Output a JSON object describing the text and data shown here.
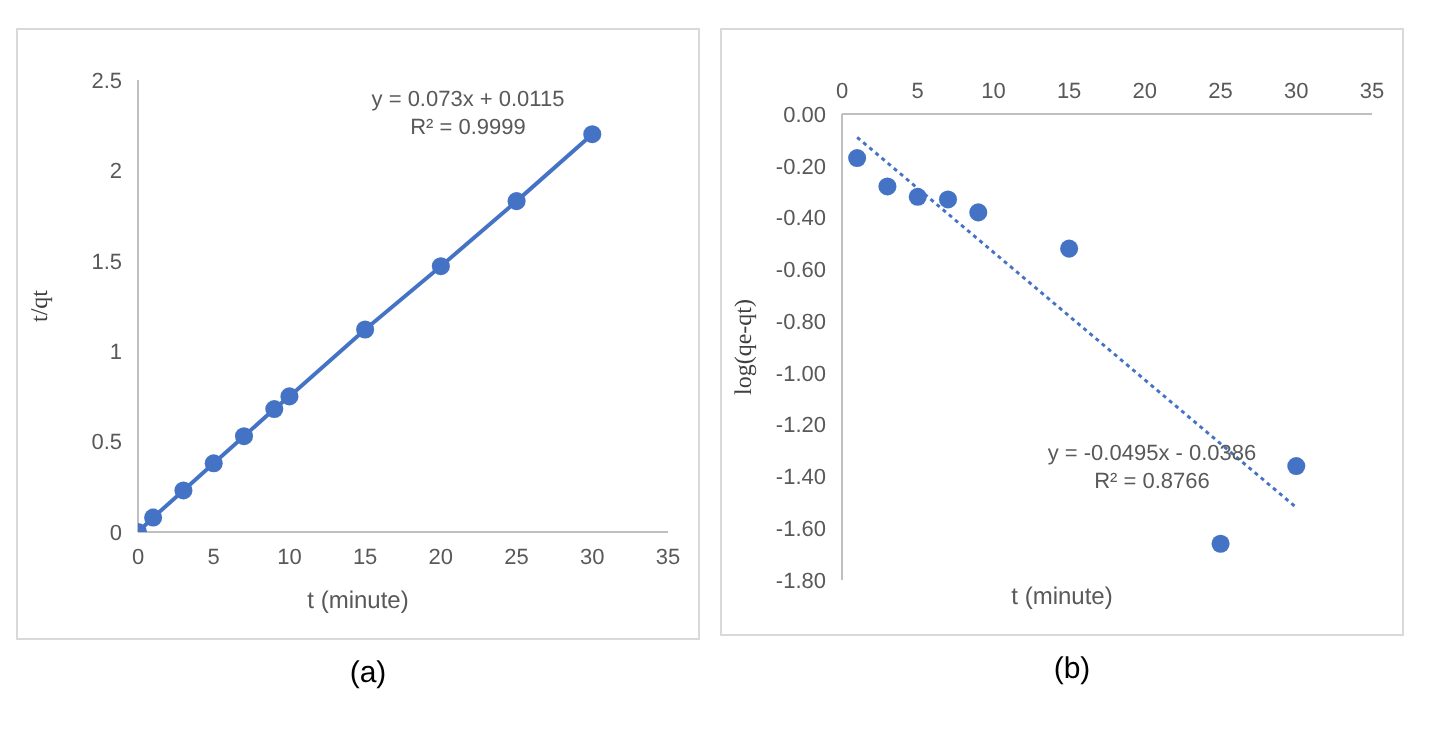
{
  "chart_data": [
    {
      "type": "line",
      "marker": "circle",
      "xlabel": "t (minute)",
      "ylabel": "t/qt",
      "xlim": [
        0,
        35
      ],
      "xticks": [
        0,
        5,
        10,
        15,
        20,
        25,
        30,
        35
      ],
      "ylim": [
        0,
        2.5
      ],
      "yticks": [
        0,
        0.5,
        1,
        1.5,
        2,
        2.5
      ],
      "grid": false,
      "x": [
        0,
        1,
        3,
        5,
        7,
        9,
        10,
        15,
        20,
        25,
        30
      ],
      "series": [
        {
          "color": "#4472c4",
          "values": [
            0,
            0.08,
            0.23,
            0.38,
            0.53,
            0.68,
            0.75,
            1.12,
            1.47,
            1.83,
            2.2
          ]
        }
      ],
      "annotations": [
        "y = 0.073x + 0.0115",
        "R² = 0.9999",
        "(a)"
      ]
    },
    {
      "type": "scatter",
      "marker": "circle",
      "xlabel": "t (minute)",
      "ylabel": "log(qe-qt)",
      "xlim": [
        0,
        35
      ],
      "xticks": [
        0,
        5,
        10,
        15,
        20,
        25,
        30,
        35
      ],
      "ylim": [
        -1.8,
        0
      ],
      "yticks": [
        {
          "value": -1.8,
          "label": "-1.80"
        },
        {
          "value": -1.6,
          "label": "-1.60"
        },
        {
          "value": -1.4,
          "label": "-1.40"
        },
        {
          "value": -1.2,
          "label": "-1.20"
        },
        {
          "value": -1,
          "label": "-1.00"
        },
        {
          "value": -0.8,
          "label": "-0.80"
        },
        {
          "value": -0.6,
          "label": "-0.60"
        },
        {
          "value": -0.4,
          "label": "-0.40"
        },
        {
          "value": -0.2,
          "label": "-0.20"
        },
        {
          "value": 0,
          "label": "0.00"
        }
      ],
      "grid": false,
      "x": [
        1,
        3,
        5,
        7,
        9,
        15,
        25,
        30
      ],
      "series": [
        {
          "color": "#4472c4",
          "values": [
            -0.17,
            -0.28,
            -0.32,
            -0.33,
            -0.38,
            -0.52,
            -1.66,
            -1.36
          ]
        },
        {
          "type": "line",
          "marker": "none",
          "line_style": "dotted",
          "color": "#4472c4",
          "x": [
            1,
            30
          ],
          "values": [
            -0.09,
            -1.52
          ]
        }
      ],
      "annotations": [
        "y = -0.0495x - 0.0386",
        "R² = 0.8766",
        "(b)"
      ]
    }
  ]
}
